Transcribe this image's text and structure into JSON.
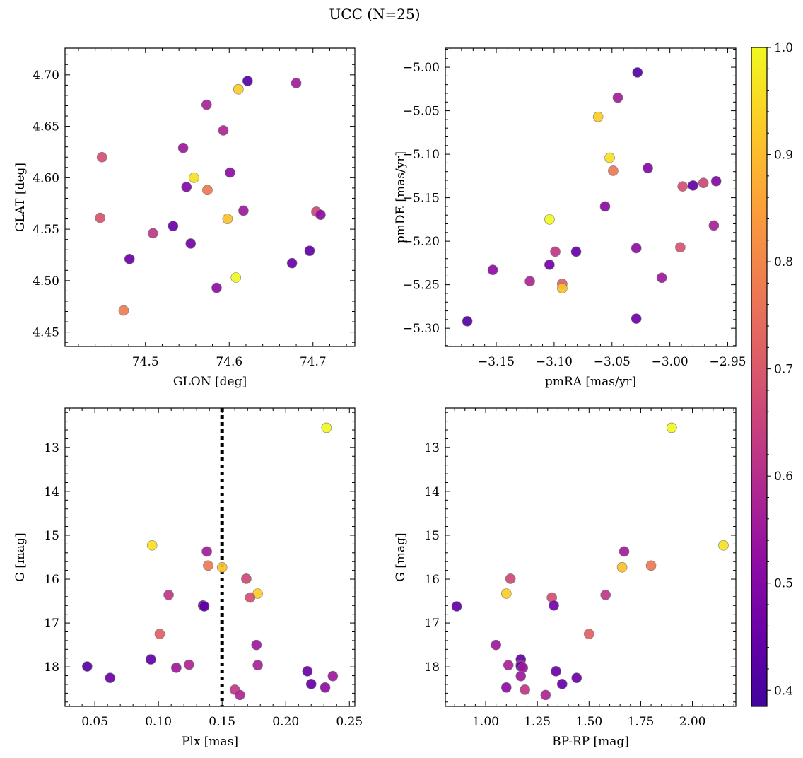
{
  "title": "UCC (N=25)",
  "colorbar": {
    "ticks": [
      "0.4",
      "0.5",
      "0.6",
      "0.7",
      "0.8",
      "0.9",
      "1.0"
    ],
    "tick_values": [
      0.4,
      0.5,
      0.6,
      0.7,
      0.8,
      0.9,
      1.0
    ],
    "range": [
      0.385,
      1.0
    ],
    "colormap": "plasma"
  },
  "chart_data": [
    {
      "type": "scatter",
      "xlabel": "GLON [deg]",
      "ylabel": "GLAT [deg]",
      "xlim": [
        74.404,
        74.75
      ],
      "ylim": [
        4.436,
        4.726
      ],
      "xticks": [
        74.5,
        74.6,
        74.7
      ],
      "xtick_labels": [
        "74.5",
        "74.6",
        "74.7"
      ],
      "yticks": [
        4.45,
        4.5,
        4.55,
        4.6,
        4.65,
        4.7
      ],
      "ytick_labels": [
        "4.45",
        "4.50",
        "4.55",
        "4.60",
        "4.65",
        "4.70"
      ],
      "invert_y": false,
      "points": [
        {
          "x": 74.622,
          "y": 4.694,
          "c": 0.42
        },
        {
          "x": 74.611,
          "y": 4.686,
          "c": 0.93
        },
        {
          "x": 74.68,
          "y": 4.692,
          "c": 0.56
        },
        {
          "x": 74.573,
          "y": 4.671,
          "c": 0.57
        },
        {
          "x": 74.593,
          "y": 4.646,
          "c": 0.58
        },
        {
          "x": 74.545,
          "y": 4.629,
          "c": 0.55
        },
        {
          "x": 74.448,
          "y": 4.62,
          "c": 0.68
        },
        {
          "x": 74.601,
          "y": 4.605,
          "c": 0.52
        },
        {
          "x": 74.558,
          "y": 4.6,
          "c": 0.96
        },
        {
          "x": 74.549,
          "y": 4.591,
          "c": 0.5
        },
        {
          "x": 74.574,
          "y": 4.588,
          "c": 0.77
        },
        {
          "x": 74.617,
          "y": 4.568,
          "c": 0.55
        },
        {
          "x": 74.704,
          "y": 4.567,
          "c": 0.66
        },
        {
          "x": 74.709,
          "y": 4.564,
          "c": 0.52
        },
        {
          "x": 74.446,
          "y": 4.561,
          "c": 0.69
        },
        {
          "x": 74.598,
          "y": 4.56,
          "c": 0.91
        },
        {
          "x": 74.533,
          "y": 4.553,
          "c": 0.46
        },
        {
          "x": 74.509,
          "y": 4.546,
          "c": 0.62
        },
        {
          "x": 74.554,
          "y": 4.536,
          "c": 0.47
        },
        {
          "x": 74.696,
          "y": 4.529,
          "c": 0.44
        },
        {
          "x": 74.481,
          "y": 4.521,
          "c": 0.46
        },
        {
          "x": 74.675,
          "y": 4.517,
          "c": 0.46
        },
        {
          "x": 74.608,
          "y": 4.503,
          "c": 1.0
        },
        {
          "x": 74.585,
          "y": 4.493,
          "c": 0.52
        },
        {
          "x": 74.474,
          "y": 4.471,
          "c": 0.78
        }
      ]
    },
    {
      "type": "scatter",
      "xlabel": "pmRA [mas/yr]",
      "ylabel": "pmDE [mas/yr]",
      "xlim": [
        -3.194,
        -2.943
      ],
      "ylim": [
        -5.321,
        -4.978
      ],
      "xticks": [
        -3.15,
        -3.1,
        -3.05,
        -3.0,
        -2.95
      ],
      "xtick_labels": [
        "−3.15",
        "−3.10",
        "−3.05",
        "−3.00",
        "−2.95"
      ],
      "yticks": [
        -5.3,
        -5.25,
        -5.2,
        -5.15,
        -5.1,
        -5.05,
        -5.0
      ],
      "ytick_labels": [
        "−5.30",
        "−5.25",
        "−5.20",
        "−5.15",
        "−5.10",
        "−5.05",
        "−5.00"
      ],
      "invert_y": false,
      "points": [
        {
          "x": -3.028,
          "y": -5.006,
          "c": 0.42
        },
        {
          "x": -3.045,
          "y": -5.035,
          "c": 0.56
        },
        {
          "x": -3.062,
          "y": -5.057,
          "c": 0.93
        },
        {
          "x": -3.052,
          "y": -5.104,
          "c": 0.96
        },
        {
          "x": -3.019,
          "y": -5.116,
          "c": 0.5
        },
        {
          "x": -3.049,
          "y": -5.119,
          "c": 0.77
        },
        {
          "x": -2.96,
          "y": -5.131,
          "c": 0.5
        },
        {
          "x": -2.971,
          "y": -5.133,
          "c": 0.66
        },
        {
          "x": -2.98,
          "y": -5.136,
          "c": 0.44
        },
        {
          "x": -2.989,
          "y": -5.137,
          "c": 0.68
        },
        {
          "x": -3.056,
          "y": -5.16,
          "c": 0.51
        },
        {
          "x": -3.104,
          "y": -5.175,
          "c": 1.0
        },
        {
          "x": -2.962,
          "y": -5.182,
          "c": 0.57
        },
        {
          "x": -3.029,
          "y": -5.208,
          "c": 0.52
        },
        {
          "x": -2.991,
          "y": -5.207,
          "c": 0.69
        },
        {
          "x": -3.099,
          "y": -5.212,
          "c": 0.62
        },
        {
          "x": -3.081,
          "y": -5.212,
          "c": 0.45
        },
        {
          "x": -3.104,
          "y": -5.227,
          "c": 0.47
        },
        {
          "x": -3.153,
          "y": -5.233,
          "c": 0.52
        },
        {
          "x": -3.007,
          "y": -5.242,
          "c": 0.55
        },
        {
          "x": -3.121,
          "y": -5.246,
          "c": 0.58
        },
        {
          "x": -3.093,
          "y": -5.249,
          "c": 0.72
        },
        {
          "x": -3.093,
          "y": -5.254,
          "c": 0.91
        },
        {
          "x": -3.029,
          "y": -5.289,
          "c": 0.46
        },
        {
          "x": -3.175,
          "y": -5.292,
          "c": 0.42
        }
      ]
    },
    {
      "type": "scatter",
      "xlabel": "Plx [mas]",
      "ylabel": "G [mag]",
      "xlim": [
        0.0266,
        0.2543
      ],
      "ylim": [
        12.1,
        18.9
      ],
      "xticks": [
        0.05,
        0.1,
        0.15,
        0.2,
        0.25
      ],
      "xtick_labels": [
        "0.05",
        "0.10",
        "0.15",
        "0.20",
        "0.25"
      ],
      "yticks": [
        13,
        14,
        15,
        16,
        17,
        18
      ],
      "ytick_labels": [
        "13",
        "14",
        "15",
        "16",
        "17",
        "18"
      ],
      "invert_y": true,
      "vline": {
        "x": 0.15,
        "style": "dotted"
      },
      "points": [
        {
          "x": 0.232,
          "y": 12.55,
          "c": 1.0
        },
        {
          "x": 0.095,
          "y": 15.23,
          "c": 0.96
        },
        {
          "x": 0.138,
          "y": 15.37,
          "c": 0.56
        },
        {
          "x": 0.139,
          "y": 15.69,
          "c": 0.77
        },
        {
          "x": 0.15,
          "y": 15.73,
          "c": 0.91
        },
        {
          "x": 0.169,
          "y": 15.99,
          "c": 0.66
        },
        {
          "x": 0.178,
          "y": 16.33,
          "c": 0.93
        },
        {
          "x": 0.108,
          "y": 16.36,
          "c": 0.62
        },
        {
          "x": 0.172,
          "y": 16.42,
          "c": 0.68
        },
        {
          "x": 0.135,
          "y": 16.6,
          "c": 0.47
        },
        {
          "x": 0.136,
          "y": 16.62,
          "c": 0.44
        },
        {
          "x": 0.101,
          "y": 17.25,
          "c": 0.72
        },
        {
          "x": 0.177,
          "y": 17.5,
          "c": 0.55
        },
        {
          "x": 0.094,
          "y": 17.83,
          "c": 0.44
        },
        {
          "x": 0.124,
          "y": 17.95,
          "c": 0.58
        },
        {
          "x": 0.178,
          "y": 17.96,
          "c": 0.57
        },
        {
          "x": 0.044,
          "y": 17.99,
          "c": 0.42
        },
        {
          "x": 0.114,
          "y": 18.02,
          "c": 0.55
        },
        {
          "x": 0.217,
          "y": 18.1,
          "c": 0.46
        },
        {
          "x": 0.237,
          "y": 18.21,
          "c": 0.55
        },
        {
          "x": 0.062,
          "y": 18.25,
          "c": 0.46
        },
        {
          "x": 0.22,
          "y": 18.39,
          "c": 0.45
        },
        {
          "x": 0.231,
          "y": 18.47,
          "c": 0.52
        },
        {
          "x": 0.16,
          "y": 18.52,
          "c": 0.62
        },
        {
          "x": 0.164,
          "y": 18.64,
          "c": 0.58
        }
      ]
    },
    {
      "type": "scatter",
      "xlabel": "BP-RP [mag]",
      "ylabel": "G [mag]",
      "xlim": [
        0.805,
        2.21
      ],
      "ylim": [
        12.1,
        18.9
      ],
      "xticks": [
        1.0,
        1.25,
        1.5,
        1.75,
        2.0
      ],
      "xtick_labels": [
        "1.00",
        "1.25",
        "1.50",
        "1.75",
        "2.00"
      ],
      "yticks": [
        13,
        14,
        15,
        16,
        17,
        18
      ],
      "ytick_labels": [
        "13",
        "14",
        "15",
        "16",
        "17",
        "18"
      ],
      "invert_y": true,
      "points": [
        {
          "x": 1.9,
          "y": 12.55,
          "c": 1.0
        },
        {
          "x": 2.15,
          "y": 15.23,
          "c": 0.96
        },
        {
          "x": 1.67,
          "y": 15.37,
          "c": 0.56
        },
        {
          "x": 1.8,
          "y": 15.69,
          "c": 0.77
        },
        {
          "x": 1.66,
          "y": 15.73,
          "c": 0.91
        },
        {
          "x": 1.12,
          "y": 15.99,
          "c": 0.66
        },
        {
          "x": 1.1,
          "y": 16.33,
          "c": 0.93
        },
        {
          "x": 1.58,
          "y": 16.36,
          "c": 0.62
        },
        {
          "x": 1.32,
          "y": 16.42,
          "c": 0.68
        },
        {
          "x": 0.86,
          "y": 16.62,
          "c": 0.44
        },
        {
          "x": 1.33,
          "y": 16.6,
          "c": 0.47
        },
        {
          "x": 1.5,
          "y": 17.25,
          "c": 0.72
        },
        {
          "x": 1.05,
          "y": 17.5,
          "c": 0.55
        },
        {
          "x": 1.17,
          "y": 17.83,
          "c": 0.44
        },
        {
          "x": 1.17,
          "y": 17.95,
          "c": 0.58
        },
        {
          "x": 1.11,
          "y": 17.96,
          "c": 0.57
        },
        {
          "x": 1.17,
          "y": 17.99,
          "c": 0.42
        },
        {
          "x": 1.18,
          "y": 18.02,
          "c": 0.55
        },
        {
          "x": 1.34,
          "y": 18.1,
          "c": 0.46
        },
        {
          "x": 1.17,
          "y": 18.21,
          "c": 0.55
        },
        {
          "x": 1.44,
          "y": 18.25,
          "c": 0.46
        },
        {
          "x": 1.37,
          "y": 18.39,
          "c": 0.45
        },
        {
          "x": 1.1,
          "y": 18.47,
          "c": 0.52
        },
        {
          "x": 1.19,
          "y": 18.52,
          "c": 0.62
        },
        {
          "x": 1.29,
          "y": 18.64,
          "c": 0.58
        }
      ]
    }
  ]
}
